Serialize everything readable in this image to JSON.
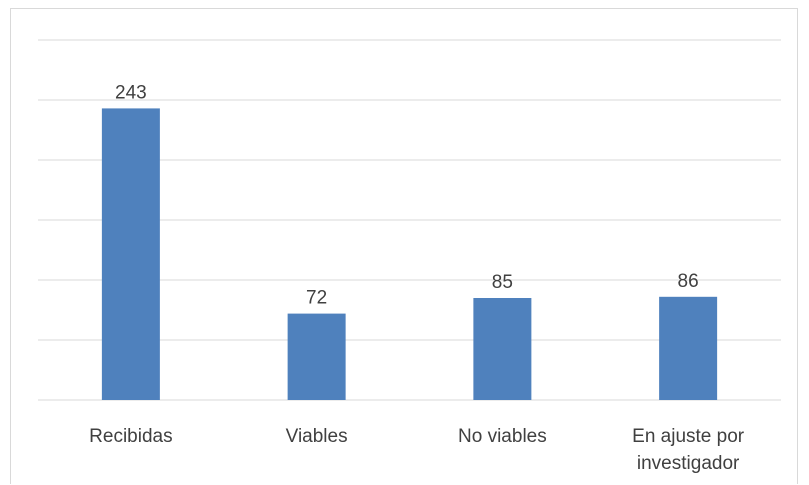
{
  "chart_data": {
    "type": "bar",
    "title": "",
    "xlabel": "",
    "ylabel": "",
    "categories": [
      [
        "Recibidas"
      ],
      [
        "Viables"
      ],
      [
        "No viables"
      ],
      [
        "En ajuste por",
        "investigador"
      ]
    ],
    "values": [
      243,
      72,
      85,
      86
    ],
    "ylim": [
      0,
      300
    ],
    "y_gridlines": [
      0,
      50,
      100,
      150,
      200,
      250,
      300
    ],
    "data_labels": true,
    "grid": true,
    "legend": "none",
    "colors": {
      "bar": "#4f81bd",
      "grid": "#d9d9d9",
      "text": "#404040"
    }
  }
}
